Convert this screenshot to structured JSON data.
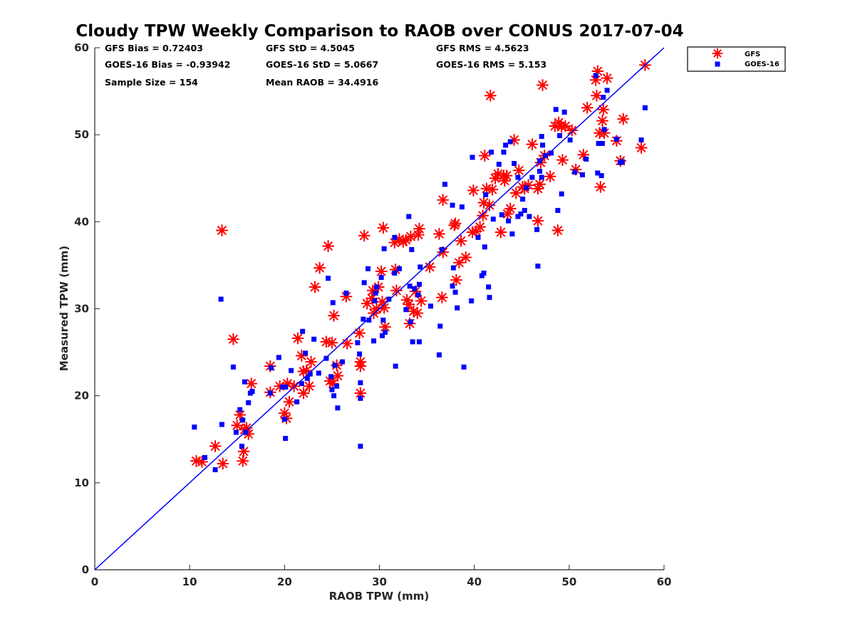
{
  "chart_data": {
    "type": "scatter",
    "title": "Cloudy TPW Weekly Comparison to RAOB over CONUS 2017-07-04",
    "xlabel": "RAOB TPW (mm)",
    "ylabel": "Measured TPW (mm)",
    "xlim": [
      0,
      60
    ],
    "ylim": [
      0,
      60
    ],
    "xticks": [
      "0",
      "10",
      "20",
      "30",
      "40",
      "50",
      "60"
    ],
    "yticks": [
      "0",
      "10",
      "20",
      "30",
      "40",
      "50",
      "60"
    ],
    "grid": false,
    "legend_position": "outside-top-right",
    "reference_line": {
      "x": [
        0,
        60
      ],
      "y": [
        0,
        60
      ],
      "color": "#0000ff"
    },
    "stats": {
      "gfs_bias": "GFS Bias = 0.72403",
      "gfs_std": "GFS StD = 4.5045",
      "gfs_rms": "GFS RMS = 4.5623",
      "goes_bias": "GOES-16 Bias = -0.93942",
      "goes_std": "GOES-16 StD = 5.0667",
      "goes_rms": "GOES-16 RMS = 5.153",
      "sample_size": "Sample Size = 154",
      "mean_raob": "Mean RAOB = 34.4916"
    },
    "series": [
      {
        "name": "GFS",
        "marker": "asterisk",
        "color": "#ff0000",
        "points": [
          [
            10.7,
            12.5
          ],
          [
            11.3,
            12.4
          ],
          [
            12.7,
            14.2
          ],
          [
            13.5,
            12.2
          ],
          [
            13.4,
            39.0
          ],
          [
            14.6,
            26.5
          ],
          [
            15.0,
            16.6
          ],
          [
            15.3,
            17.8
          ],
          [
            15.6,
            12.5
          ],
          [
            15.7,
            13.6
          ],
          [
            15.8,
            16.1
          ],
          [
            16.0,
            16.3
          ],
          [
            16.2,
            15.6
          ],
          [
            16.5,
            21.4
          ],
          [
            18.5,
            20.4
          ],
          [
            18.5,
            23.4
          ],
          [
            19.5,
            21.1
          ],
          [
            20.0,
            18.0
          ],
          [
            20.2,
            17.4
          ],
          [
            20.3,
            21.4
          ],
          [
            20.5,
            19.3
          ],
          [
            21.0,
            21.1
          ],
          [
            21.4,
            26.6
          ],
          [
            21.8,
            24.6
          ],
          [
            22.0,
            22.8
          ],
          [
            22.0,
            20.3
          ],
          [
            22.3,
            22.9
          ],
          [
            22.6,
            21.1
          ],
          [
            22.8,
            23.9
          ],
          [
            23.2,
            32.5
          ],
          [
            23.7,
            34.7
          ],
          [
            24.4,
            26.2
          ],
          [
            24.6,
            37.2
          ],
          [
            24.8,
            21.7
          ],
          [
            25.0,
            26.1
          ],
          [
            25.1,
            21.4
          ],
          [
            25.2,
            29.2
          ],
          [
            25.5,
            23.5
          ],
          [
            25.6,
            22.3
          ],
          [
            26.5,
            31.4
          ],
          [
            26.6,
            26.0
          ],
          [
            27.9,
            27.2
          ],
          [
            28.0,
            23.9
          ],
          [
            28.0,
            20.3
          ],
          [
            28.0,
            23.4
          ],
          [
            28.4,
            38.4
          ],
          [
            28.7,
            30.6
          ],
          [
            29.3,
            32.1
          ],
          [
            29.2,
            31.2
          ],
          [
            29.4,
            29.5
          ],
          [
            29.7,
            30.0
          ],
          [
            29.9,
            32.5
          ],
          [
            30.2,
            34.3
          ],
          [
            30.3,
            30.8
          ],
          [
            30.4,
            39.3
          ],
          [
            30.6,
            27.9
          ],
          [
            30.5,
            30.1
          ],
          [
            31.6,
            37.6
          ],
          [
            31.7,
            34.5
          ],
          [
            31.8,
            32.1
          ],
          [
            32.1,
            38.0
          ],
          [
            32.5,
            37.7
          ],
          [
            32.8,
            37.9
          ],
          [
            32.9,
            31.0
          ],
          [
            33.1,
            30.5
          ],
          [
            33.2,
            28.3
          ],
          [
            33.3,
            38.3
          ],
          [
            33.6,
            29.7
          ],
          [
            33.8,
            32.0
          ],
          [
            34.0,
            29.5
          ],
          [
            34.1,
            38.5
          ],
          [
            34.2,
            39.2
          ],
          [
            34.4,
            30.9
          ],
          [
            35.3,
            34.8
          ],
          [
            36.3,
            38.6
          ],
          [
            36.6,
            31.3
          ],
          [
            36.7,
            36.5
          ],
          [
            36.7,
            42.5
          ],
          [
            37.9,
            39.6
          ],
          [
            38.0,
            39.8
          ],
          [
            38.1,
            33.3
          ],
          [
            38.6,
            37.8
          ],
          [
            38.4,
            35.3
          ],
          [
            39.1,
            35.9
          ],
          [
            39.8,
            38.8
          ],
          [
            39.9,
            43.6
          ],
          [
            40.2,
            38.9
          ],
          [
            40.6,
            39.4
          ],
          [
            40.9,
            40.7
          ],
          [
            41.0,
            42.2
          ],
          [
            41.1,
            47.6
          ],
          [
            41.3,
            43.8
          ],
          [
            41.6,
            41.9
          ],
          [
            41.7,
            54.5
          ],
          [
            41.9,
            43.7
          ],
          [
            42.2,
            45.0
          ],
          [
            42.5,
            45.5
          ],
          [
            42.8,
            38.8
          ],
          [
            43.1,
            45.3
          ],
          [
            43.2,
            44.7
          ],
          [
            43.4,
            45.3
          ],
          [
            43.5,
            40.9
          ],
          [
            43.8,
            41.5
          ],
          [
            44.2,
            49.4
          ],
          [
            44.4,
            43.3
          ],
          [
            44.7,
            45.9
          ],
          [
            45.1,
            44.0
          ],
          [
            45.3,
            43.8
          ],
          [
            45.7,
            44.2
          ],
          [
            46.1,
            48.9
          ],
          [
            46.7,
            40.1
          ],
          [
            46.9,
            44.3
          ],
          [
            47.0,
            46.8
          ],
          [
            46.7,
            43.8
          ],
          [
            47.2,
            55.7
          ],
          [
            47.4,
            47.6
          ],
          [
            48.0,
            45.2
          ],
          [
            48.5,
            51.0
          ],
          [
            48.8,
            39.0
          ],
          [
            48.9,
            51.4
          ],
          [
            49.2,
            50.9
          ],
          [
            49.3,
            47.1
          ],
          [
            49.6,
            51.0
          ],
          [
            50.3,
            50.5
          ],
          [
            50.7,
            46.0
          ],
          [
            51.5,
            47.7
          ],
          [
            51.9,
            53.1
          ],
          [
            52.8,
            56.3
          ],
          [
            52.9,
            54.5
          ],
          [
            53.0,
            57.3
          ],
          [
            53.2,
            50.2
          ],
          [
            53.3,
            44.0
          ],
          [
            53.5,
            51.6
          ],
          [
            53.6,
            52.9
          ],
          [
            53.7,
            50.2
          ],
          [
            54.0,
            56.5
          ],
          [
            55.0,
            49.3
          ],
          [
            55.4,
            47.0
          ],
          [
            55.7,
            51.8
          ],
          [
            57.6,
            48.5
          ],
          [
            58.0,
            58.0
          ]
        ]
      },
      {
        "name": "GOES-16",
        "marker": "square",
        "color": "#0000ff",
        "points": [
          [
            10.5,
            16.4
          ],
          [
            11.6,
            12.9
          ],
          [
            12.7,
            11.5
          ],
          [
            13.4,
            16.7
          ],
          [
            13.3,
            31.1
          ],
          [
            14.6,
            23.3
          ],
          [
            14.9,
            15.8
          ],
          [
            15.3,
            18.4
          ],
          [
            15.5,
            14.2
          ],
          [
            15.6,
            17.2
          ],
          [
            15.8,
            21.6
          ],
          [
            15.9,
            15.8
          ],
          [
            16.2,
            19.2
          ],
          [
            16.4,
            20.3
          ],
          [
            16.6,
            20.5
          ],
          [
            18.5,
            20.3
          ],
          [
            18.6,
            23.2
          ],
          [
            19.4,
            24.4
          ],
          [
            19.8,
            21.0
          ],
          [
            20.0,
            17.3
          ],
          [
            20.1,
            15.1
          ],
          [
            20.1,
            21.0
          ],
          [
            20.7,
            22.9
          ],
          [
            21.3,
            19.3
          ],
          [
            21.8,
            21.4
          ],
          [
            21.9,
            27.4
          ],
          [
            22.2,
            24.9
          ],
          [
            22.4,
            22.0
          ],
          [
            22.7,
            22.5
          ],
          [
            23.1,
            26.5
          ],
          [
            23.6,
            22.6
          ],
          [
            24.4,
            24.3
          ],
          [
            24.6,
            33.5
          ],
          [
            24.9,
            22.2
          ],
          [
            25.0,
            20.7
          ],
          [
            25.2,
            20.0
          ],
          [
            25.1,
            30.7
          ],
          [
            25.3,
            23.5
          ],
          [
            25.6,
            18.6
          ],
          [
            25.5,
            21.1
          ],
          [
            26.1,
            23.9
          ],
          [
            26.5,
            31.8
          ],
          [
            27.7,
            26.1
          ],
          [
            27.9,
            24.8
          ],
          [
            28.0,
            19.7
          ],
          [
            28.0,
            14.2
          ],
          [
            28.0,
            21.5
          ],
          [
            28.3,
            28.8
          ],
          [
            28.4,
            33.0
          ],
          [
            28.8,
            34.6
          ],
          [
            28.9,
            28.7
          ],
          [
            29.4,
            26.3
          ],
          [
            29.5,
            30.9
          ],
          [
            29.6,
            31.8
          ],
          [
            29.7,
            32.5
          ],
          [
            30.2,
            33.6
          ],
          [
            30.3,
            26.9
          ],
          [
            30.4,
            28.7
          ],
          [
            30.5,
            36.9
          ],
          [
            30.6,
            27.3
          ],
          [
            31.0,
            31.1
          ],
          [
            31.6,
            38.2
          ],
          [
            31.6,
            34.1
          ],
          [
            31.7,
            23.4
          ],
          [
            32.1,
            34.6
          ],
          [
            32.8,
            29.9
          ],
          [
            33.1,
            40.6
          ],
          [
            33.2,
            32.6
          ],
          [
            33.3,
            28.5
          ],
          [
            33.4,
            36.8
          ],
          [
            33.5,
            26.2
          ],
          [
            33.7,
            32.3
          ],
          [
            34.1,
            31.6
          ],
          [
            34.2,
            26.2
          ],
          [
            34.3,
            34.8
          ],
          [
            34.2,
            32.8
          ],
          [
            35.4,
            30.3
          ],
          [
            36.3,
            24.7
          ],
          [
            36.4,
            28.0
          ],
          [
            36.6,
            36.8
          ],
          [
            36.9,
            44.3
          ],
          [
            37.7,
            41.9
          ],
          [
            37.7,
            32.6
          ],
          [
            37.8,
            34.7
          ],
          [
            38.0,
            31.9
          ],
          [
            38.2,
            30.1
          ],
          [
            38.7,
            41.7
          ],
          [
            38.9,
            23.3
          ],
          [
            39.7,
            30.9
          ],
          [
            39.8,
            47.4
          ],
          [
            40.4,
            38.2
          ],
          [
            40.8,
            33.8
          ],
          [
            41.0,
            34.1
          ],
          [
            41.1,
            37.1
          ],
          [
            41.2,
            43.1
          ],
          [
            41.5,
            32.5
          ],
          [
            41.6,
            31.3
          ],
          [
            41.8,
            48.0
          ],
          [
            42.0,
            40.3
          ],
          [
            42.6,
            46.6
          ],
          [
            42.9,
            40.8
          ],
          [
            43.1,
            48.0
          ],
          [
            43.3,
            48.8
          ],
          [
            43.6,
            40.1
          ],
          [
            43.8,
            49.2
          ],
          [
            44.0,
            38.6
          ],
          [
            44.2,
            46.7
          ],
          [
            44.6,
            45.1
          ],
          [
            44.6,
            40.6
          ],
          [
            44.9,
            40.9
          ],
          [
            45.1,
            42.6
          ],
          [
            45.3,
            41.3
          ],
          [
            45.5,
            43.9
          ],
          [
            45.8,
            40.6
          ],
          [
            46.1,
            45.1
          ],
          [
            46.6,
            39.1
          ],
          [
            46.7,
            34.9
          ],
          [
            46.9,
            45.8
          ],
          [
            46.9,
            47.0
          ],
          [
            47.1,
            49.8
          ],
          [
            47.1,
            45.1
          ],
          [
            47.2,
            48.8
          ],
          [
            47.5,
            47.6
          ],
          [
            48.1,
            47.9
          ],
          [
            48.6,
            52.9
          ],
          [
            48.8,
            41.3
          ],
          [
            49.0,
            49.9
          ],
          [
            49.2,
            43.2
          ],
          [
            49.5,
            52.6
          ],
          [
            50.1,
            49.4
          ],
          [
            50.6,
            45.7
          ],
          [
            51.4,
            45.4
          ],
          [
            51.8,
            47.2
          ],
          [
            52.8,
            56.8
          ],
          [
            53.0,
            45.6
          ],
          [
            53.1,
            49.0
          ],
          [
            53.4,
            45.3
          ],
          [
            53.5,
            49.0
          ],
          [
            53.6,
            54.3
          ],
          [
            53.7,
            50.6
          ],
          [
            54.0,
            55.1
          ],
          [
            55.0,
            49.5
          ],
          [
            55.4,
            46.8
          ],
          [
            55.6,
            46.9
          ],
          [
            57.6,
            49.4
          ],
          [
            58.0,
            53.1
          ]
        ]
      }
    ]
  }
}
